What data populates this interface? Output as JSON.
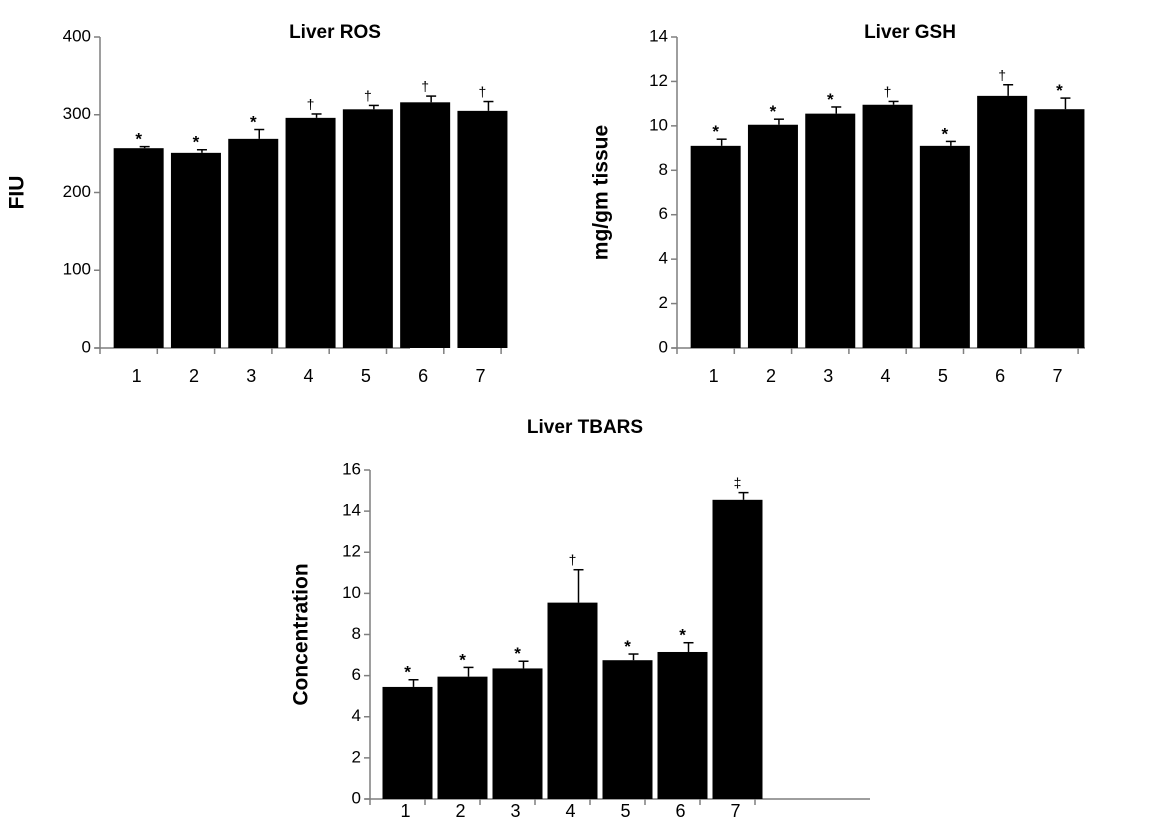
{
  "chart_data": [
    {
      "id": "ros",
      "type": "bar",
      "title": "Liver ROS",
      "xlabel": "",
      "ylabel": "FIU",
      "ylim": [
        0,
        400
      ],
      "yticks": [
        0,
        100,
        200,
        300,
        400
      ],
      "categories": [
        "1",
        "2",
        "3",
        "4",
        "5",
        "6",
        "7"
      ],
      "values": [
        257,
        251,
        269,
        296,
        307,
        316,
        305
      ],
      "errors": [
        2,
        4,
        12,
        5,
        5,
        8,
        12
      ],
      "annotations": [
        "*",
        "*",
        "*",
        "†",
        "†",
        "†",
        "†"
      ],
      "grid": false,
      "bar_color": "#000000"
    },
    {
      "id": "gsh",
      "type": "bar",
      "title": "Liver GSH",
      "xlabel": "",
      "ylabel": "mg/gm tissue",
      "ylim": [
        0,
        14
      ],
      "yticks": [
        0,
        2,
        4,
        6,
        8,
        10,
        12,
        14
      ],
      "categories": [
        "1",
        "2",
        "3",
        "4",
        "5",
        "6",
        "7"
      ],
      "values": [
        9.1,
        10.05,
        10.55,
        10.95,
        9.1,
        11.35,
        10.75
      ],
      "errors": [
        0.3,
        0.25,
        0.3,
        0.15,
        0.2,
        0.5,
        0.5
      ],
      "annotations": [
        "*",
        "*",
        "*",
        "†",
        "*",
        "†",
        "*"
      ],
      "grid": false,
      "bar_color": "#000000"
    },
    {
      "id": "tbars",
      "type": "bar",
      "title": "Liver TBARS",
      "xlabel": "",
      "ylabel": "Concentration",
      "ylim": [
        0,
        16
      ],
      "yticks": [
        0,
        2,
        4,
        6,
        8,
        10,
        12,
        14,
        16
      ],
      "categories": [
        "1",
        "2",
        "3",
        "4",
        "5",
        "6",
        "7"
      ],
      "values": [
        5.45,
        5.95,
        6.35,
        9.55,
        6.75,
        7.15,
        14.55
      ],
      "errors": [
        0.35,
        0.45,
        0.35,
        1.6,
        0.3,
        0.45,
        0.35
      ],
      "annotations": [
        "*",
        "*",
        "*",
        "†",
        "*",
        "*",
        "‡"
      ],
      "grid": false,
      "bar_color": "#000000"
    }
  ]
}
